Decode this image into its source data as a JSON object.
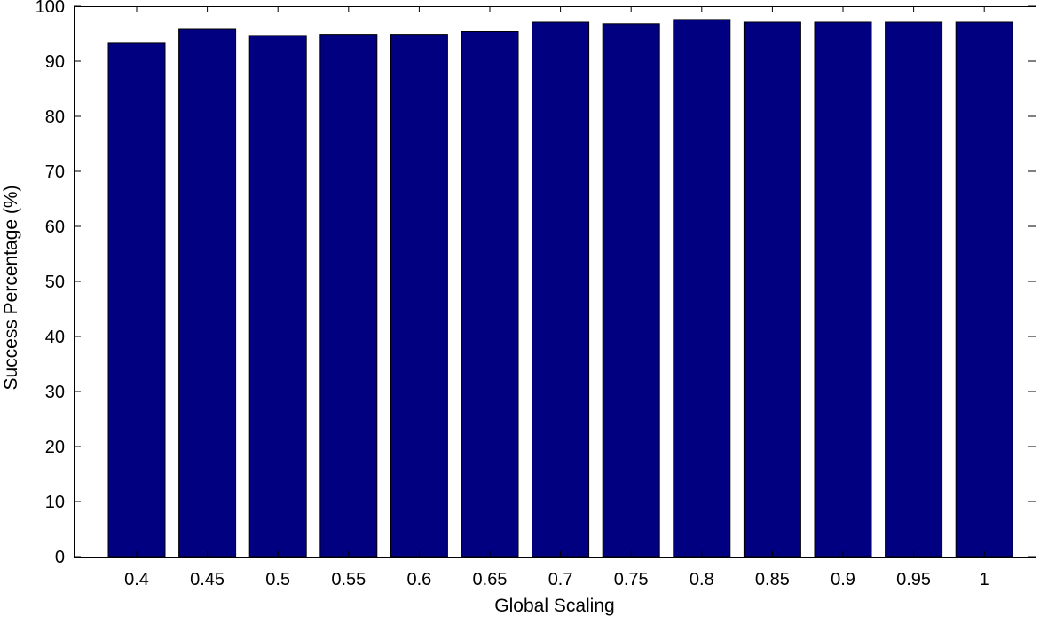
{
  "chart_data": {
    "type": "bar",
    "categories": [
      "0.4",
      "0.45",
      "0.5",
      "0.55",
      "0.6",
      "0.65",
      "0.7",
      "0.75",
      "0.8",
      "0.85",
      "0.9",
      "0.95",
      "1"
    ],
    "values": [
      93.4,
      95.8,
      94.7,
      94.9,
      94.9,
      95.4,
      97.1,
      96.8,
      97.6,
      97.1,
      97.1,
      97.1,
      97.1
    ],
    "title": "",
    "xlabel": "Global Scaling",
    "ylabel": "Success Percentage (%)",
    "ylim": [
      0,
      100
    ],
    "yticks": [
      0,
      10,
      20,
      30,
      40,
      50,
      60,
      70,
      80,
      90,
      100
    ],
    "grid": false,
    "legend": "none",
    "bar_color": "#000080",
    "edge_color": "#000000"
  }
}
